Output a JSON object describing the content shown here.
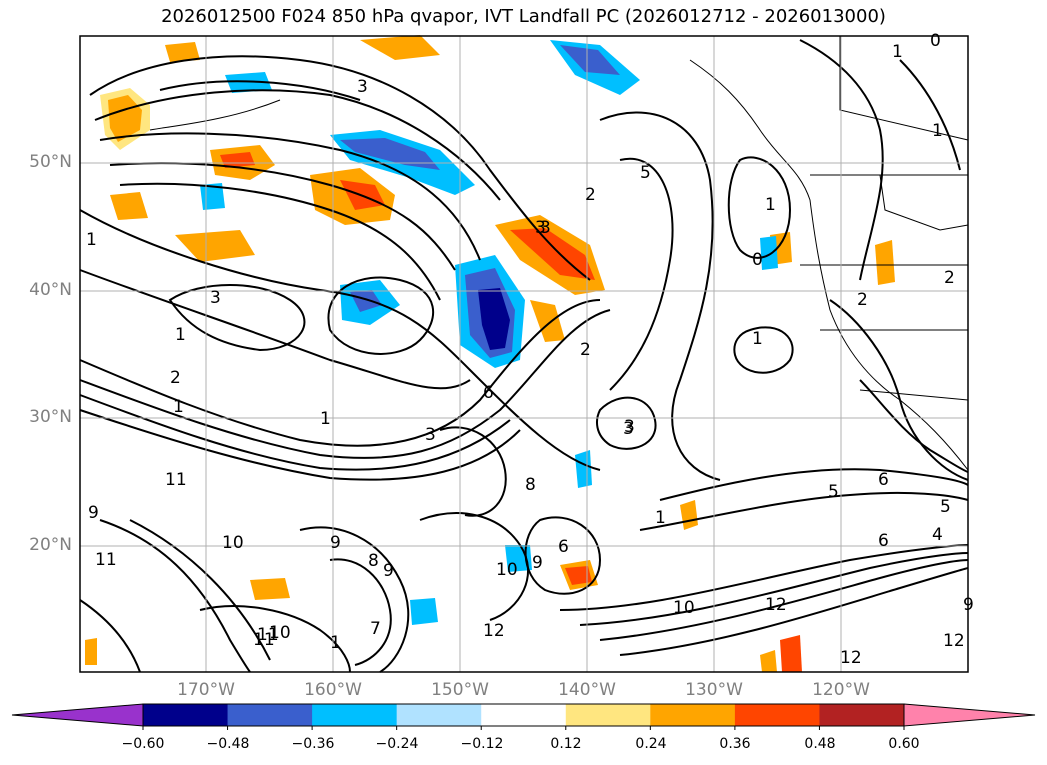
{
  "title": "2026012500 F024 850 hPa qvapor, IVT Landfall PC (2026012712 - 2026013000)",
  "map": {
    "lat_labels": [
      "50°N",
      "40°N",
      "30°N",
      "20°N"
    ],
    "lon_labels": [
      "170°W",
      "160°W",
      "150°W",
      "140°W",
      "130°W",
      "120°W"
    ],
    "extent": {
      "lon": [
        -178,
        -108
      ],
      "lat": [
        10,
        60
      ]
    },
    "contour_labels": [
      "3",
      "1",
      "2",
      "3",
      "5",
      "1",
      "1",
      "3",
      "1",
      "2",
      "3",
      "1",
      "3",
      "2",
      "6",
      "8",
      "11",
      "11",
      "9",
      "10",
      "11",
      "9",
      "8",
      "9",
      "10",
      "9",
      "6",
      "10",
      "12",
      "7",
      "1",
      "10",
      "11",
      "12",
      "3",
      "5",
      "6",
      "1",
      "1",
      "0",
      "2",
      "3",
      "6",
      "5",
      "4",
      "9",
      "12",
      "12",
      "0",
      "1",
      "1",
      "2"
    ]
  },
  "colorbar": {
    "labels": [
      "−0.60",
      "−0.48",
      "−0.36",
      "−0.24",
      "−0.12",
      "0.12",
      "0.24",
      "0.36",
      "0.48",
      "0.60"
    ],
    "bounds": [
      -0.6,
      -0.48,
      -0.36,
      -0.24,
      -0.12,
      0.12,
      0.24,
      0.36,
      0.48,
      0.6
    ],
    "colors": [
      "#9932cc",
      "#00008b",
      "#3a5fcd",
      "#00bfff",
      "#b0e2ff",
      "#ffffff",
      "#ffe680",
      "#ffa500",
      "#ff4500",
      "#b22222",
      "#ff82ab"
    ]
  }
}
